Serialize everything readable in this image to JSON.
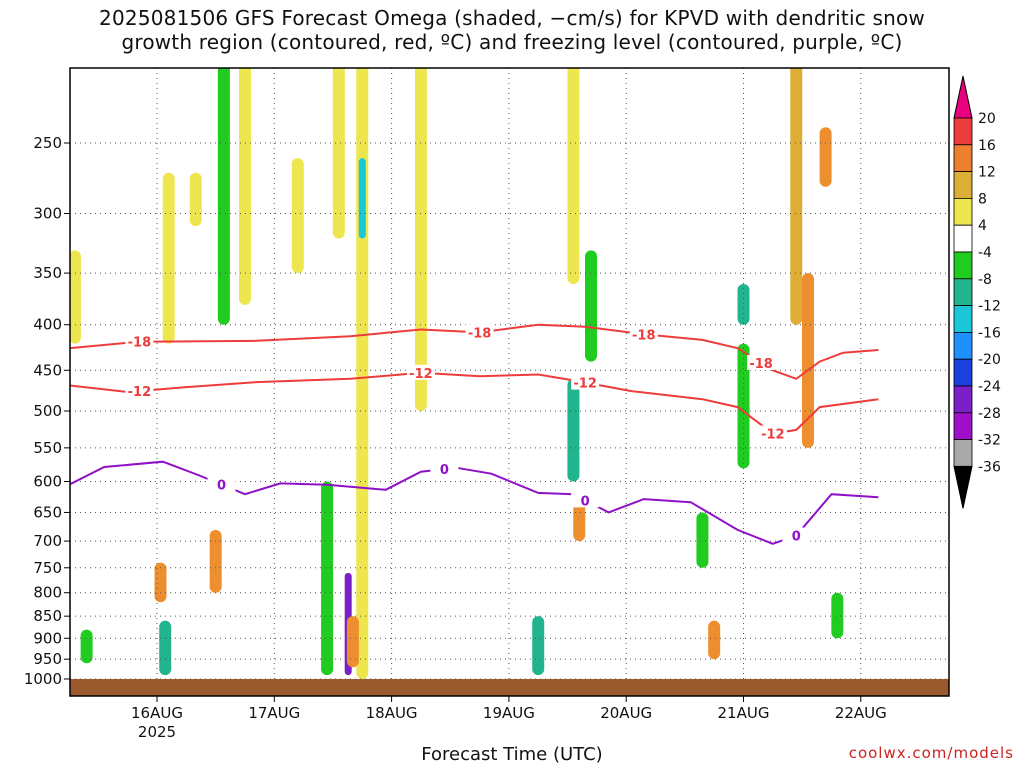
{
  "title": {
    "line1": "2025081506 GFS Forecast Omega (shaded, −cm/s) for KPVD with dendritic snow",
    "line2": "growth region (contoured, red, ºC) and freezing level (contoured, purple, ºC)"
  },
  "xlabel": "Forecast Time (UTC)",
  "credit": "coolwx.com/models",
  "chart_data": {
    "type": "heatmap",
    "title": "2025081506 GFS Forecast Omega (shaded, −cm/s) for KPVD with dendritic snow growth region (contoured, red, ºC) and freezing level (contoured, purple, ºC)",
    "xlabel": "Forecast Time (UTC)",
    "ylabel": "",
    "x_range": [
      "2025-08-15T06",
      "2025-08-22T21"
    ],
    "y_range_hPa": [
      1020,
      200
    ],
    "y_scale": "log-pressure",
    "x_ticks": [
      {
        "label": "16AUG",
        "sub": "2025",
        "day": 16
      },
      {
        "label": "17AUG",
        "sub": "",
        "day": 17
      },
      {
        "label": "18AUG",
        "sub": "",
        "day": 18
      },
      {
        "label": "19AUG",
        "sub": "",
        "day": 19
      },
      {
        "label": "20AUG",
        "sub": "",
        "day": 20
      },
      {
        "label": "21AUG",
        "sub": "",
        "day": 21
      },
      {
        "label": "22AUG",
        "sub": "",
        "day": 22
      }
    ],
    "y_ticks": [
      250,
      300,
      350,
      400,
      450,
      500,
      550,
      600,
      650,
      700,
      750,
      800,
      850,
      900,
      950,
      1000
    ],
    "grid": true,
    "colorbar": {
      "labels": [
        "20",
        "16",
        "12",
        "8",
        "4",
        "-4",
        "-8",
        "-12",
        "-16",
        "-20",
        "-24",
        "-28",
        "-32",
        "-36"
      ],
      "colors": [
        "#e8007f",
        "#ee3b3b",
        "#ee7f2f",
        "#dcae35",
        "#eee64e",
        "#ffffff",
        "#1fcc1f",
        "#22b48f",
        "#19c7d6",
        "#1e90ff",
        "#1c3fe0",
        "#7b1fc9",
        "#a010c8",
        "#a9a9a9",
        "#000000"
      ]
    },
    "contours": [
      {
        "name": "-18",
        "color": "#ee3b3b",
        "points": [
          [
            0.0,
            425
          ],
          [
            0.6,
            418
          ],
          [
            1.6,
            417
          ],
          [
            2.4,
            412
          ],
          [
            3.0,
            405
          ],
          [
            3.5,
            408
          ],
          [
            4.0,
            400
          ],
          [
            4.4,
            402
          ],
          [
            4.9,
            410
          ],
          [
            5.4,
            416
          ],
          [
            5.7,
            425
          ],
          [
            6.0,
            450
          ],
          [
            6.2,
            460
          ],
          [
            6.4,
            440
          ],
          [
            6.6,
            430
          ],
          [
            6.9,
            427
          ]
        ],
        "label_at": [
          0.6,
          3.5,
          4.9,
          5.9
        ]
      },
      {
        "name": "-12",
        "color": "#ee3b3b",
        "points": [
          [
            0.0,
            468
          ],
          [
            0.5,
            476
          ],
          [
            1.0,
            470
          ],
          [
            1.6,
            464
          ],
          [
            2.4,
            460
          ],
          [
            3.0,
            453
          ],
          [
            3.5,
            457
          ],
          [
            4.0,
            455
          ],
          [
            4.3,
            462
          ],
          [
            4.8,
            475
          ],
          [
            5.4,
            485
          ],
          [
            5.7,
            495
          ],
          [
            6.0,
            530
          ],
          [
            6.2,
            525
          ],
          [
            6.4,
            495
          ],
          [
            6.9,
            485
          ]
        ],
        "label_at": [
          0.6,
          3.0,
          4.4,
          6.0
        ]
      },
      {
        "name": "0",
        "color": "#9010c8",
        "points": [
          [
            0.0,
            605
          ],
          [
            0.3,
            578
          ],
          [
            0.8,
            570
          ],
          [
            1.1,
            590
          ],
          [
            1.5,
            620
          ],
          [
            1.8,
            603
          ],
          [
            2.2,
            605
          ],
          [
            2.7,
            613
          ],
          [
            3.0,
            585
          ],
          [
            3.3,
            579
          ],
          [
            3.6,
            588
          ],
          [
            4.0,
            618
          ],
          [
            4.3,
            620
          ],
          [
            4.6,
            650
          ],
          [
            4.9,
            628
          ],
          [
            5.3,
            633
          ],
          [
            5.7,
            680
          ],
          [
            6.0,
            705
          ],
          [
            6.2,
            690
          ],
          [
            6.5,
            620
          ],
          [
            6.9,
            625
          ]
        ],
        "label_at": [
          1.3,
          3.2,
          4.4,
          6.2
        ]
      }
    ],
    "omega_cells": [
      {
        "day": 0.05,
        "p": [
          330,
          420
        ],
        "v": 6
      },
      {
        "day": 0.15,
        "p": [
          880,
          960
        ],
        "v": -8
      },
      {
        "day": 0.85,
        "p": [
          270,
          420
        ],
        "v": 5
      },
      {
        "day": 0.82,
        "p": [
          860,
          990
        ],
        "v": -12
      },
      {
        "day": 0.78,
        "p": [
          740,
          820
        ],
        "v": 12
      },
      {
        "day": 1.08,
        "p": [
          270,
          310
        ],
        "v": 6
      },
      {
        "day": 1.25,
        "p": [
          680,
          800
        ],
        "v": 12
      },
      {
        "day": 1.32,
        "p": [
          200,
          400
        ],
        "v": -8
      },
      {
        "day": 1.5,
        "p": [
          200,
          380
        ],
        "v": 6
      },
      {
        "day": 1.95,
        "p": [
          260,
          350
        ],
        "v": 6
      },
      {
        "day": 2.3,
        "p": [
          200,
          320
        ],
        "v": 6
      },
      {
        "day": 2.5,
        "p": [
          200,
          1000
        ],
        "v": 6
      },
      {
        "day": 2.5,
        "p": [
          260,
          320
        ],
        "v": -18
      },
      {
        "day": 2.38,
        "p": [
          760,
          990
        ],
        "v": -26
      },
      {
        "day": 2.42,
        "p": [
          850,
          970
        ],
        "v": 14
      },
      {
        "day": 2.2,
        "p": [
          600,
          990
        ],
        "v": -8
      },
      {
        "day": 3.0,
        "p": [
          200,
          500
        ],
        "v": 6
      },
      {
        "day": 4.0,
        "p": [
          850,
          990
        ],
        "v": -12
      },
      {
        "day": 4.3,
        "p": [
          200,
          360
        ],
        "v": 6
      },
      {
        "day": 4.3,
        "p": [
          460,
          600
        ],
        "v": -14
      },
      {
        "day": 4.35,
        "p": [
          620,
          700
        ],
        "v": 12
      },
      {
        "day": 4.45,
        "p": [
          330,
          440
        ],
        "v": -8
      },
      {
        "day": 5.4,
        "p": [
          650,
          750
        ],
        "v": -8
      },
      {
        "day": 5.5,
        "p": [
          860,
          950
        ],
        "v": 12
      },
      {
        "day": 5.75,
        "p": [
          360,
          400
        ],
        "v": -14
      },
      {
        "day": 5.75,
        "p": [
          420,
          580
        ],
        "v": -8
      },
      {
        "day": 6.2,
        "p": [
          200,
          400
        ],
        "v": 8
      },
      {
        "day": 6.3,
        "p": [
          350,
          550
        ],
        "v": 12
      },
      {
        "day": 6.45,
        "p": [
          240,
          280
        ],
        "v": 14
      },
      {
        "day": 6.55,
        "p": [
          800,
          900
        ],
        "v": -8
      }
    ]
  }
}
